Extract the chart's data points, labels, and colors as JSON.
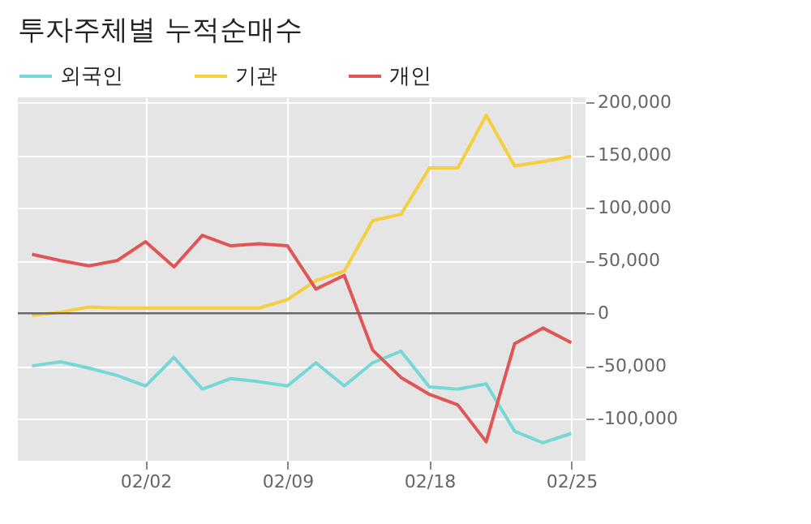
{
  "chart_data": {
    "type": "line",
    "title": "투자주체별 누적순매수",
    "categories": [
      null,
      null,
      null,
      null,
      "02/02",
      null,
      null,
      null,
      null,
      "02/09",
      null,
      null,
      null,
      null,
      "02/18",
      null,
      null,
      null,
      null,
      "02/25"
    ],
    "series": [
      {
        "name": "외국인",
        "color": "#76d8d6",
        "values": [
          -50000,
          -46000,
          -52000,
          -59000,
          -69000,
          -42000,
          -72000,
          -62000,
          -65000,
          -69000,
          -47000,
          -69000,
          -47000,
          -36000,
          -70000,
          -72000,
          -67000,
          -112000,
          -123000,
          -114000
        ]
      },
      {
        "name": "기관",
        "color": "#f5cf3e",
        "values": [
          -2000,
          1000,
          6000,
          5000,
          5000,
          5000,
          5000,
          5000,
          5000,
          13000,
          31000,
          40000,
          88000,
          94000,
          138000,
          138000,
          188000,
          140000,
          144000,
          149000
        ]
      },
      {
        "name": "개인",
        "color": "#e05656",
        "values": [
          56000,
          50000,
          45000,
          50000,
          68000,
          44000,
          74000,
          64000,
          66000,
          64000,
          23000,
          36000,
          -35000,
          -61000,
          -77000,
          -87000,
          -122000,
          -29000,
          -14000,
          -28000
        ]
      }
    ],
    "ylim": [
      -140000,
      205000
    ],
    "yticks": [
      {
        "value": -100000,
        "label": "-100,000"
      },
      {
        "value": -50000,
        "label": "-50,000"
      },
      0,
      {
        "value": 50000,
        "label": "50,000"
      },
      {
        "value": 100000,
        "label": "100,000"
      },
      {
        "value": 150000,
        "label": "150,000"
      },
      {
        "value": 200000,
        "label": "200,000"
      }
    ],
    "ref_lines": [
      {
        "axis": "y",
        "value": 0,
        "color": "#666666"
      }
    ],
    "grid": true,
    "legend": "top left"
  }
}
